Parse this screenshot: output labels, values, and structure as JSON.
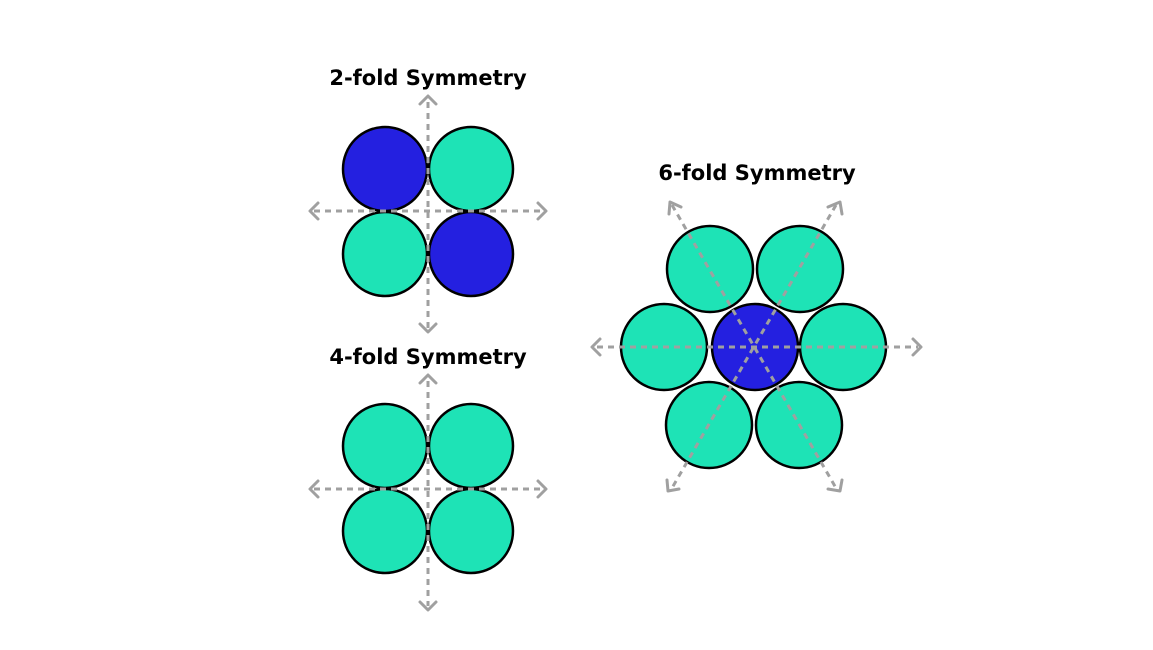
{
  "colors": {
    "light": "#1ee3b6",
    "dark": "#2420e0",
    "axis": "#a0a0a0"
  },
  "panels": [
    {
      "id": "two-fold",
      "title": "2-fold Symmetry",
      "fill_pattern": [
        "dark",
        "light",
        "light",
        "dark"
      ]
    },
    {
      "id": "four-fold",
      "title": "4-fold Symmetry",
      "fill_pattern": [
        "light",
        "light",
        "light",
        "light"
      ]
    },
    {
      "id": "six-fold",
      "title": "6-fold Symmetry",
      "fill_pattern": [
        "dark",
        "light",
        "light",
        "light",
        "light",
        "light",
        "light"
      ]
    }
  ]
}
